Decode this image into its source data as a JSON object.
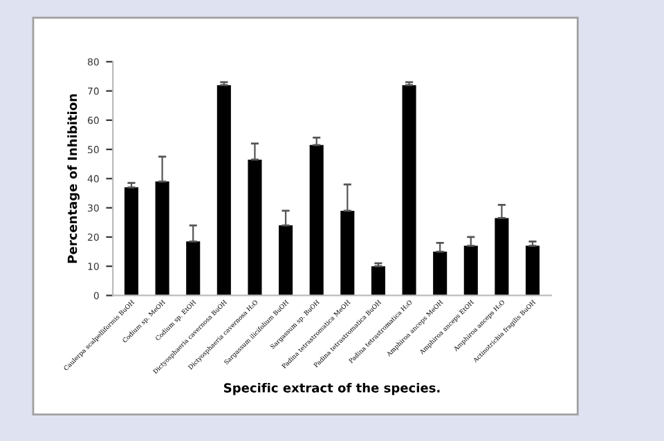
{
  "chart_data": {
    "type": "bar",
    "xlabel": "Specific extract of the species.",
    "ylabel": "Percentage of Inhibition",
    "categories": [
      "Caulerpa scalpelliformis BuOH",
      "Codium sp. MeOH",
      "Codium sp. EtOH",
      "Dictyosphaeria cavernosa BuOH",
      "Dictyosphaeria cavernosa H₂O",
      "Sargassum ilicifolium BuOH",
      "Sargassum sp. BuOH",
      "Padina tetrastromatica MeOH",
      "Padina tetrastromatica BuOH",
      "Padina tetrastromatica H₂O",
      "Amphiroa anceps MeOH",
      "Amphiroa anceps EtOH",
      "Amphiroa anceps H₂O",
      "Actinotrichia fragilis BuOH"
    ],
    "values": [
      37,
      39,
      18.5,
      72,
      46.5,
      24,
      51.5,
      29,
      10,
      72,
      15,
      17,
      26.5,
      17
    ],
    "errors": [
      [
        37,
        38.5
      ],
      [
        39,
        47.5
      ],
      [
        18.5,
        24
      ],
      [
        72,
        73
      ],
      [
        46.5,
        52
      ],
      [
        24,
        29
      ],
      [
        51.5,
        54
      ],
      [
        29,
        38
      ],
      [
        10,
        11
      ],
      [
        72,
        73
      ],
      [
        15,
        18
      ],
      [
        17,
        20
      ],
      [
        26.5,
        31
      ],
      [
        17,
        18.5
      ]
    ],
    "color": "#000000",
    "ylim": [
      0,
      80
    ],
    "yticks": [
      0,
      10,
      20,
      30,
      40,
      50,
      60,
      70,
      80
    ],
    "grid": false
  }
}
